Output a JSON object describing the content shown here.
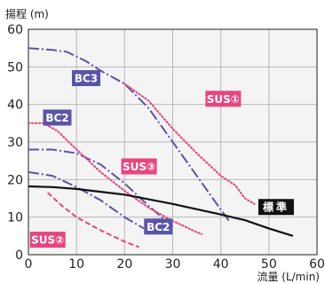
{
  "chart_data": {
    "type": "line",
    "title": "",
    "xlabel": "流量 (L/min)",
    "ylabel": "揚程 (m)",
    "xlim": [
      0,
      60
    ],
    "ylim": [
      0,
      60
    ],
    "x_ticks": [
      0,
      10,
      20,
      30,
      40,
      50,
      60
    ],
    "y_ticks": [
      0,
      10,
      20,
      30,
      40,
      50,
      60
    ],
    "grid": true,
    "series": [
      {
        "name": "BC3",
        "color": "#5a54a8",
        "style": "dashdot",
        "points": [
          [
            0,
            55
          ],
          [
            5,
            54.5
          ],
          [
            8,
            54
          ],
          [
            12,
            51.5
          ],
          [
            15,
            49
          ],
          [
            20,
            45.5
          ],
          [
            25,
            39
          ],
          [
            30,
            30
          ],
          [
            35,
            21
          ],
          [
            40,
            12
          ],
          [
            42,
            8.5
          ]
        ]
      },
      {
        "name": "SUS①",
        "color": "#e6457f",
        "style": "dotted",
        "points": [
          [
            20,
            45.5
          ],
          [
            25,
            41
          ],
          [
            30,
            33.5
          ],
          [
            35,
            27
          ],
          [
            40,
            21
          ],
          [
            43,
            18.5
          ],
          [
            45,
            15
          ],
          [
            47,
            13.5
          ]
        ]
      },
      {
        "name": "BC2",
        "color": "#5a54a8",
        "style": "dashdot",
        "points": [
          [
            0,
            28
          ],
          [
            5,
            28
          ],
          [
            10,
            27
          ],
          [
            15,
            24
          ],
          [
            20,
            19
          ],
          [
            25,
            13
          ],
          [
            30,
            7.5
          ]
        ]
      },
      {
        "name": "SUS③",
        "color": "#e6457f",
        "style": "dotted",
        "points": [
          [
            0,
            35
          ],
          [
            3,
            35
          ],
          [
            6,
            33
          ],
          [
            10,
            28
          ],
          [
            15,
            22
          ],
          [
            20,
            17
          ],
          [
            25,
            12.5
          ],
          [
            30,
            9
          ],
          [
            35,
            6
          ],
          [
            36,
            5.5
          ]
        ]
      },
      {
        "name": "BC2",
        "color": "#5a54a8",
        "style": "dashdot",
        "points": [
          [
            0,
            22
          ],
          [
            5,
            21
          ],
          [
            10,
            18
          ],
          [
            15,
            14.5
          ],
          [
            20,
            10
          ],
          [
            24,
            7
          ]
        ]
      },
      {
        "name": "SUS②",
        "color": "#e6457f",
        "style": "dashed",
        "points": [
          [
            4,
            16.5
          ],
          [
            7,
            13
          ],
          [
            10,
            10
          ],
          [
            15,
            6.5
          ],
          [
            20,
            3.5
          ],
          [
            23,
            2
          ]
        ]
      },
      {
        "name": "標準",
        "color": "#111111",
        "style": "solid",
        "points": [
          [
            0,
            18.2
          ],
          [
            5,
            18
          ],
          [
            10,
            17.5
          ],
          [
            20,
            16
          ],
          [
            30,
            13.5
          ],
          [
            40,
            10.7
          ],
          [
            45,
            9.2
          ],
          [
            50,
            7
          ],
          [
            55,
            5
          ]
        ]
      }
    ],
    "labels": [
      {
        "text": "BC3",
        "x": 12,
        "y": 47,
        "bg": "#5a54a8"
      },
      {
        "text": "SUS①",
        "x": 40.5,
        "y": 41.5,
        "bg": "#e6457f"
      },
      {
        "text": "BC2",
        "x": 6,
        "y": 36.5,
        "bg": "#5a54a8"
      },
      {
        "text": "SUS③",
        "x": 23,
        "y": 23.5,
        "bg": "#e6457f"
      },
      {
        "text": "標準",
        "x": 51.5,
        "y": 12.7,
        "bg": "#111111"
      },
      {
        "text": "BC2",
        "x": 27,
        "y": 7.5,
        "bg": "#5a54a8"
      },
      {
        "text": "SUS②",
        "x": 4,
        "y": 4,
        "bg": "#e6457f"
      }
    ]
  }
}
